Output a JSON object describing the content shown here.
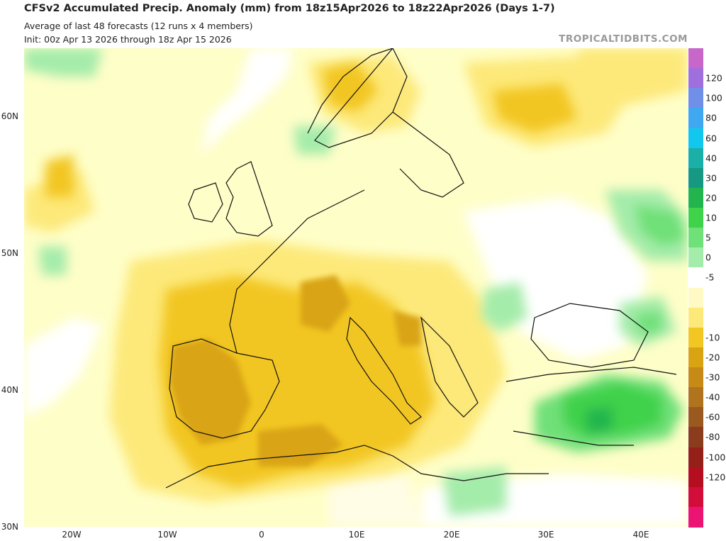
{
  "header": {
    "title": "CFSv2 Accumulated Precip. Anomaly (mm) from 18z15Apr2026 to 18z22Apr2026 (Days 1-7)",
    "subtitle_1": "Average of last 48 forecasts (12 runs x 4 members)",
    "subtitle_2": "Init: 00z Apr 13 2026 through 18z Apr 15 2026",
    "brand": "TROPICALTIDBITS.COM"
  },
  "map": {
    "lat_labels": [
      "60N",
      "50N",
      "40N",
      "30N"
    ],
    "lon_labels": [
      "20W",
      "10W",
      "0",
      "10E",
      "20E",
      "30E",
      "40E"
    ],
    "background_color": "#fefec8",
    "land_color": "#fbf3b4"
  },
  "colorbar": {
    "labels": [
      "120",
      "100",
      "80",
      "60",
      "40",
      "30",
      "20",
      "10",
      "5",
      "0",
      "-5",
      "-10",
      "-20",
      "-30",
      "-40",
      "-60",
      "-80",
      "-100",
      "-120"
    ],
    "colors": [
      "#c667c9",
      "#9f6fdd",
      "#6f8fe9",
      "#3fa8f0",
      "#12c7ee",
      "#1ab0a8",
      "#179883",
      "#23b54d",
      "#3fd24b",
      "#70e078",
      "#a4ecaa",
      "#ffffff",
      "#fff9c4",
      "#fde97a",
      "#f2c623",
      "#d9a413",
      "#c78a16",
      "#b1741e",
      "#9a5a1f",
      "#8a3c1c",
      "#952018",
      "#b50e20",
      "#d30d3a",
      "#ec1472"
    ]
  }
}
